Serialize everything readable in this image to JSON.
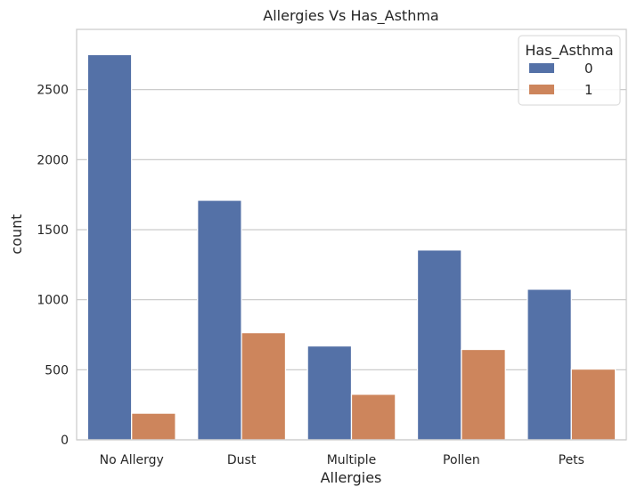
{
  "chart_data": {
    "type": "bar",
    "title": "Allergies Vs Has_Asthma",
    "xlabel": "Allergies",
    "ylabel": "count",
    "categories": [
      "No Allergy",
      "Dust",
      "Multiple",
      "Pollen",
      "Pets"
    ],
    "series": [
      {
        "name": "0",
        "color": "#5471a7",
        "values": [
          2750,
          1710,
          670,
          1355,
          1075
        ]
      },
      {
        "name": "1",
        "color": "#cd855c",
        "values": [
          190,
          765,
          325,
          645,
          505
        ]
      }
    ],
    "ylim": [
      0,
      2930
    ],
    "yticks": [
      0,
      500,
      1000,
      1500,
      2000,
      2500
    ],
    "grid": "horizontal",
    "legend": {
      "title": "Has_Asthma",
      "placement": "top-right"
    }
  }
}
